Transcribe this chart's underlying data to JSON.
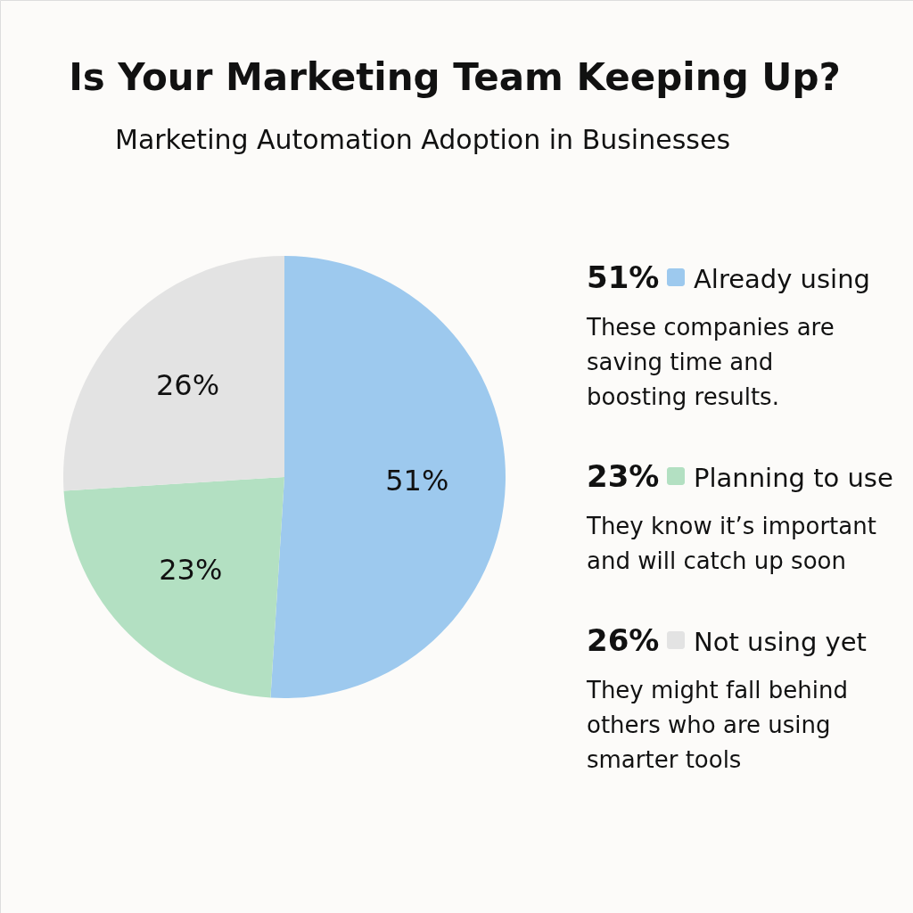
{
  "chart_data": {
    "type": "pie",
    "title": "Is Your Marketing Team Keeping Up?",
    "subtitle": "Marketing Automation Adoption in Businesses",
    "categories": [
      "Already using",
      "Planning to use",
      "Not using yet"
    ],
    "values": [
      51,
      23,
      26
    ],
    "colors": [
      "#9dc9ee",
      "#b3e0c2",
      "#e3e3e3"
    ],
    "value_labels": [
      "51%",
      "23%",
      "26%"
    ],
    "legend": "right",
    "annotations": [
      "These companies are\nsaving time and\nboosting results.",
      "They know it’s important\nand will catch up soon",
      "They might fall behind\nothers who are using\nsmarter tools"
    ]
  }
}
